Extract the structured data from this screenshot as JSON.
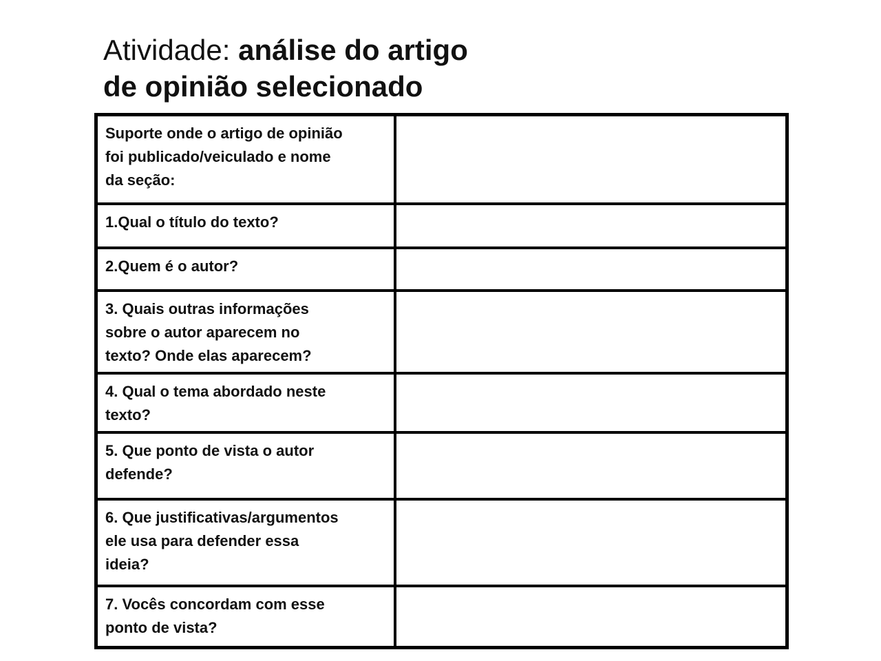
{
  "header": {
    "title_regular": "Atividade: ",
    "title_bold": "análise do artigo\nde opinião selecionado"
  },
  "table": {
    "rows": [
      {
        "question": "Suporte onde o artigo de opinião\nfoi publicado/veiculado e nome\nda seção:",
        "answer": ""
      },
      {
        "question": "1.Qual o título do texto?",
        "answer": ""
      },
      {
        "question": "2.Quem é o autor?",
        "answer": ""
      },
      {
        "question": "3. Quais outras informações\nsobre o autor aparecem no\ntexto? Onde elas aparecem?",
        "answer": ""
      },
      {
        "question": "4. Qual o tema abordado neste\ntexto?",
        "answer": ""
      },
      {
        "question": "5. Que ponto de vista o autor\ndefende?",
        "answer": ""
      },
      {
        "question": "6. Que justificativas/argumentos\nele usa para defender essa\nideia?",
        "answer": ""
      },
      {
        "question": "7. Vocês concordam com esse\nponto de vista?",
        "answer": ""
      }
    ]
  },
  "colors": {
    "background": "#ffffff",
    "text": "#111111",
    "table_border": "#000000"
  }
}
